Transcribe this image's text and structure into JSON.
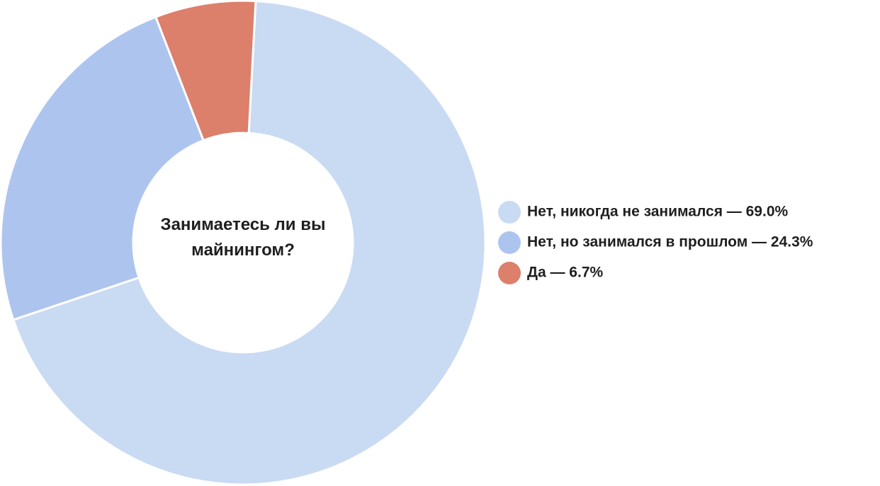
{
  "chart_data": {
    "type": "donut",
    "title": "Занимаетесь ли вы майнингом?",
    "categories": [
      "Нет, никогда не занимался — 69.0%",
      "Нет, но занимался в прошлом — 24.3%",
      "Да — 6.7%"
    ],
    "values": [
      69.0,
      24.3,
      6.7
    ],
    "colors": [
      "#c9daf3",
      "#adc5ee",
      "#dc7f6b"
    ],
    "legend": "right"
  }
}
